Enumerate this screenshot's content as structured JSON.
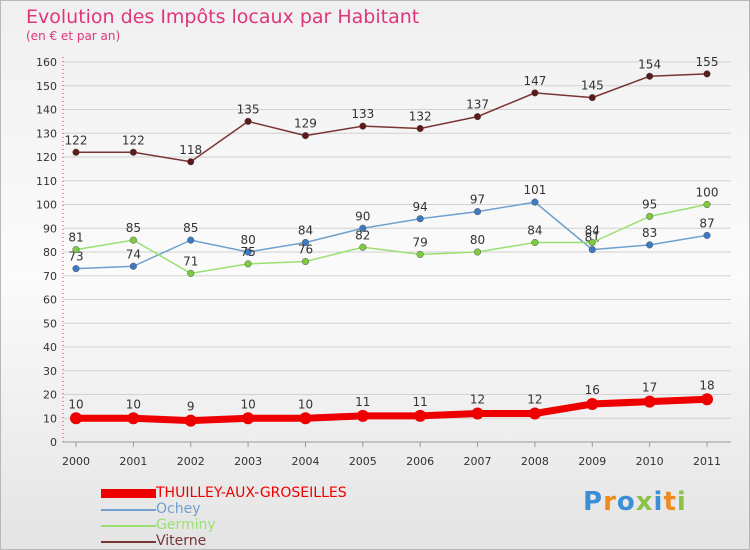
{
  "header": {
    "title": "Evolution des Impôts locaux par Habitant",
    "subtitle": "(en € et par an)"
  },
  "logo": {
    "text": "Proxiti",
    "letter_colors": [
      "#3a8fd6",
      "#f08a1c",
      "#3a8fd6",
      "#8bc34a",
      "#3a8fd6",
      "#f08a1c",
      "#8bc34a"
    ]
  },
  "chart_data": {
    "type": "line",
    "x": [
      "2000",
      "2001",
      "2002",
      "2003",
      "2004",
      "2005",
      "2006",
      "2007",
      "2008",
      "2009",
      "2010",
      "2011"
    ],
    "ylim": [
      0,
      160
    ],
    "yticks": [
      0,
      10,
      20,
      30,
      40,
      50,
      60,
      70,
      80,
      90,
      100,
      110,
      120,
      130,
      140,
      150,
      160
    ],
    "grid": "horizontal",
    "legend_position": "bottom-left",
    "series": [
      {
        "name": "THUILLEY-AUX-GROSEILLES",
        "color": "#ee0000",
        "marker_color": "#ee0000",
        "emphasis": true,
        "values": [
          10,
          10,
          9,
          10,
          10,
          11,
          11,
          12,
          12,
          16,
          17,
          18
        ]
      },
      {
        "name": "Ochey",
        "color": "#6fa0cf",
        "marker_color": "#3b7ac4",
        "emphasis": false,
        "values": [
          73,
          74,
          85,
          80,
          84,
          90,
          94,
          97,
          101,
          81,
          83,
          87
        ]
      },
      {
        "name": "Germiny",
        "color": "#9ae070",
        "marker_color": "#7dcb3e",
        "emphasis": false,
        "values": [
          81,
          85,
          71,
          75,
          76,
          82,
          79,
          80,
          84,
          84,
          95,
          100
        ]
      },
      {
        "name": "Viterne",
        "color": "#7a3535",
        "marker_color": "#5c1a1a",
        "emphasis": false,
        "values": [
          122,
          122,
          118,
          135,
          129,
          133,
          132,
          137,
          147,
          145,
          154,
          155
        ]
      }
    ]
  }
}
